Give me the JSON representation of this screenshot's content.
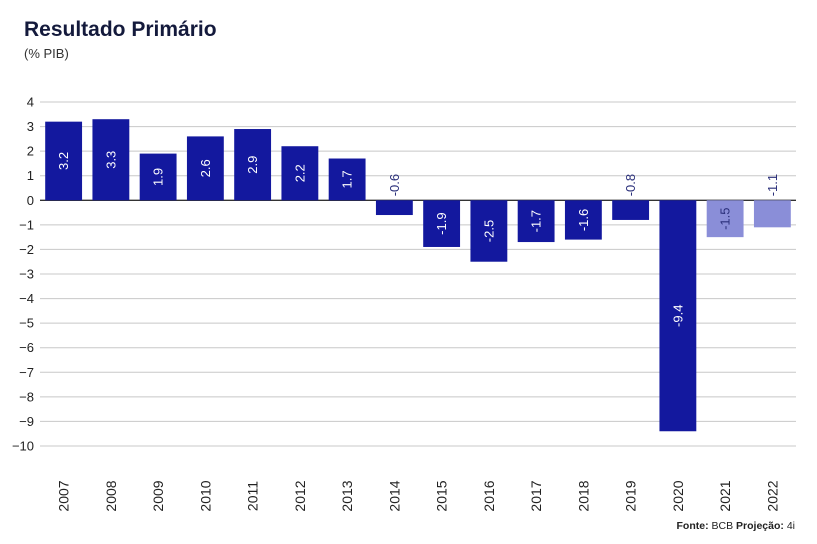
{
  "header": {
    "title": "Resultado Primário",
    "subtitle": "(% PIB)"
  },
  "source": {
    "fonte_label": "Fonte:",
    "fonte_value": "BCB",
    "projecao_label": "Projeção:",
    "projecao_value": "4i"
  },
  "colors": {
    "actual": "#13189e",
    "projection": "#8a8ed8",
    "grid": "#c8c8c8",
    "axis": "#333333"
  },
  "chart_data": {
    "type": "bar",
    "title": "Resultado Primário",
    "subtitle": "(% PIB)",
    "categories": [
      "2007",
      "2008",
      "2009",
      "2010",
      "2011",
      "2012",
      "2013",
      "2014",
      "2015",
      "2016",
      "2017",
      "2018",
      "2019",
      "2020",
      "2021",
      "2022"
    ],
    "values": [
      3.2,
      3.3,
      1.9,
      2.6,
      2.9,
      2.2,
      1.7,
      -0.6,
      -1.9,
      -2.5,
      -1.7,
      -1.6,
      -0.8,
      -9.4,
      -1.5,
      -1.1
    ],
    "labels": [
      "3.2",
      "3.3",
      "1.9",
      "2.6",
      "2.9",
      "2.2",
      "1.7",
      "-0.6",
      "-1.9",
      "-2.5",
      "-1.7",
      "-1.6",
      "-0.8",
      "-9.4",
      "-1.5",
      "-1.1"
    ],
    "projection": [
      false,
      false,
      false,
      false,
      false,
      false,
      false,
      false,
      false,
      false,
      false,
      false,
      false,
      false,
      true,
      true
    ],
    "ylim": [
      -10,
      4
    ],
    "yticks": [
      4,
      3,
      2,
      1,
      0,
      -1,
      -2,
      -3,
      -4,
      -5,
      -6,
      -7,
      -8,
      -9,
      -10
    ],
    "ytick_labels": [
      "4",
      "3",
      "2",
      "1",
      "0",
      "−1",
      "−2",
      "−3",
      "−4",
      "−5",
      "−6",
      "−7",
      "−8",
      "−9",
      "−10"
    ],
    "grid": true,
    "legend": "none"
  }
}
